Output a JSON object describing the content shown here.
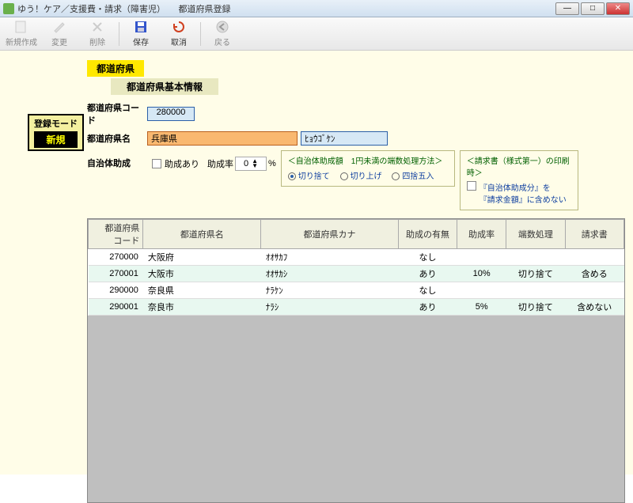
{
  "window": {
    "title": "ゆう！ケア／支援費・請求（障害児）　　都道府県登録"
  },
  "toolbar": {
    "new": "新規作成",
    "edit": "変更",
    "delete": "削除",
    "save": "保存",
    "cancel": "取消",
    "back": "戻る"
  },
  "mode": {
    "label": "登録モード",
    "value": "新規"
  },
  "section": {
    "title": "都道府県",
    "subtitle": "都道府県基本情報"
  },
  "form": {
    "code_label": "都道府県コード",
    "code_value": "280000",
    "name_label": "都道府県名",
    "name_value": "兵庫県",
    "kana_value": "ﾋｮｳｺﾞｹﾝ",
    "josei_label": "自治体助成",
    "josei_chk": "助成あり",
    "rate_label": "助成率",
    "rate_value": "0",
    "rate_unit": "%"
  },
  "group1": {
    "title": "＜自治体助成額　1円未満の端数処理方法＞",
    "opt1": "切り捨て",
    "opt2": "切り上げ",
    "opt3": "四捨五入"
  },
  "group2": {
    "title": "＜請求書（様式第一）の印刷時＞",
    "chk": "『自治体助成分』を\n『請求金額』に含めない"
  },
  "table": {
    "headers": {
      "code": "都道府県\nコード",
      "name": "都道府県名",
      "kana": "都道府県カナ",
      "umu": "助成の有無",
      "rate": "助成率",
      "hasu": "端数処理",
      "bill": "請求書"
    },
    "rows": [
      {
        "code": "270000",
        "name": "大阪府",
        "kana": "ｵｵｻｶﾌ",
        "umu": "なし",
        "rate": "",
        "hasu": "",
        "bill": ""
      },
      {
        "code": "270001",
        "name": "大阪市",
        "kana": "ｵｵｻｶｼ",
        "umu": "あり",
        "rate": "10%",
        "hasu": "切り捨て",
        "bill": "含める"
      },
      {
        "code": "290000",
        "name": "奈良県",
        "kana": "ﾅﾗｹﾝ",
        "umu": "なし",
        "rate": "",
        "hasu": "",
        "bill": ""
      },
      {
        "code": "290001",
        "name": "奈良市",
        "kana": "ﾅﾗｼ",
        "umu": "あり",
        "rate": "5%",
        "hasu": "切り捨て",
        "bill": "含めない"
      }
    ]
  }
}
